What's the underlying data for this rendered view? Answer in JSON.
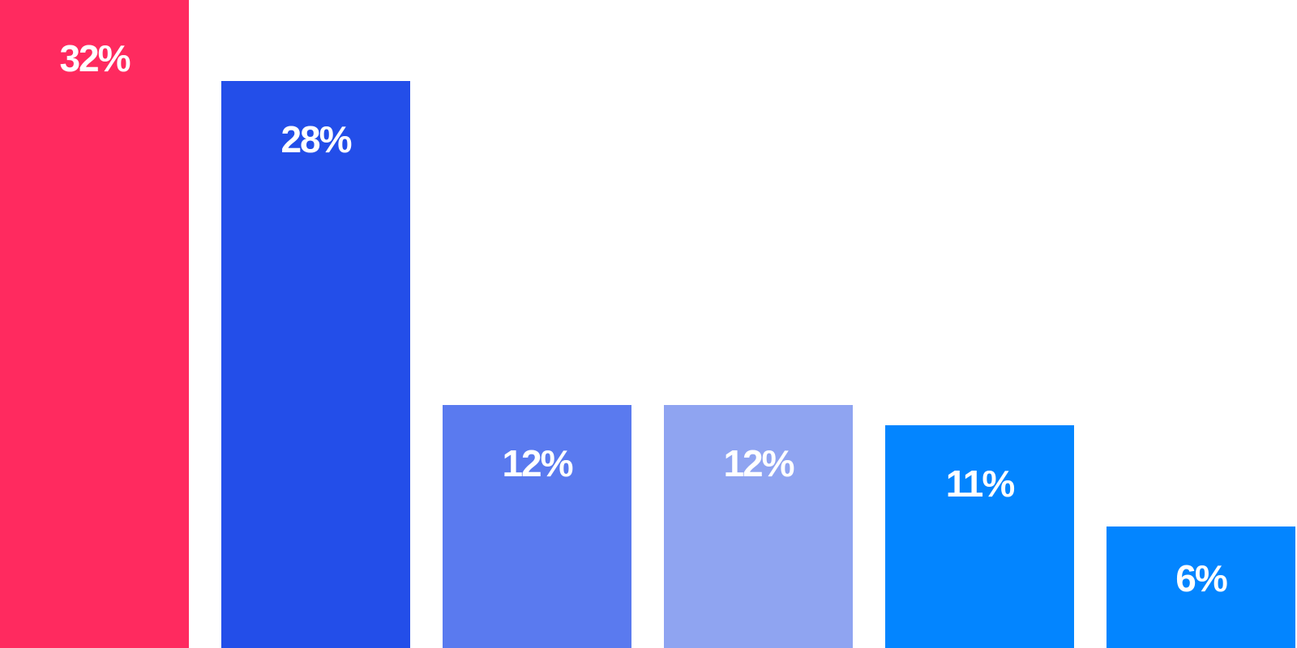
{
  "chart_data": {
    "type": "bar",
    "title": "",
    "xlabel": "",
    "ylabel": "",
    "grid": false,
    "ylim": [
      0,
      32
    ],
    "values": [
      32,
      28,
      12,
      12,
      11,
      6
    ],
    "labels": [
      "32%",
      "28%",
      "12%",
      "12%",
      "11%",
      "6%"
    ],
    "colors": [
      "#FF2A5F",
      "#234EE9",
      "#5A7AEF",
      "#8FA4F1",
      "#0385FF",
      "#0385FF"
    ]
  }
}
